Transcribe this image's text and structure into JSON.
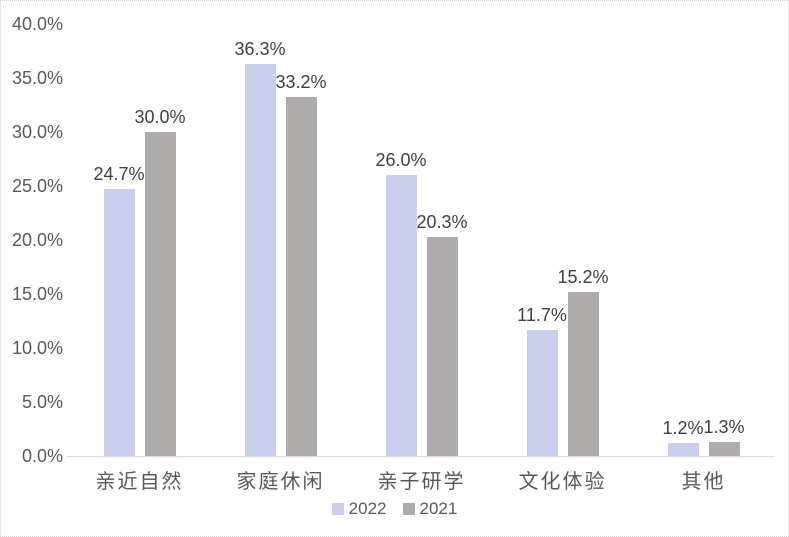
{
  "chart_data": {
    "type": "bar",
    "title": "",
    "xlabel": "",
    "ylabel": "",
    "categories": [
      "亲近自然",
      "家庭休闲",
      "亲子研学",
      "文化体验",
      "其他"
    ],
    "series": [
      {
        "name": "2022",
        "color": "#c9cfed",
        "values": [
          24.7,
          36.3,
          26.0,
          11.7,
          1.2
        ],
        "labels": [
          "24.7%",
          "36.3%",
          "26.0%",
          "11.7%",
          "1.2%"
        ]
      },
      {
        "name": "2021",
        "color": "#aeabab",
        "values": [
          30.0,
          33.2,
          20.3,
          15.2,
          1.3
        ],
        "labels": [
          "30.0%",
          "33.2%",
          "20.3%",
          "15.2%",
          "1.3%"
        ]
      }
    ],
    "y_axis": {
      "min": 0,
      "max": 40,
      "ticks": [
        "40.0%",
        "35.0%",
        "30.0%",
        "25.0%",
        "20.0%",
        "15.0%",
        "10.0%",
        "5.0%",
        "0.0%"
      ]
    },
    "grid": false,
    "legend_position": "bottom",
    "legend": [
      "2022",
      "2021"
    ]
  },
  "style": {
    "background": "#ffffff",
    "frame_border_color": "#cfcfcf",
    "axis_line_color": "#d9d9d9",
    "tick_text_color": "#595959",
    "category_text_color": "#595959",
    "data_label_color": "#3f3f3f",
    "series_2022_color": "#c9cfed",
    "series_2021_color": "#aeabab"
  }
}
